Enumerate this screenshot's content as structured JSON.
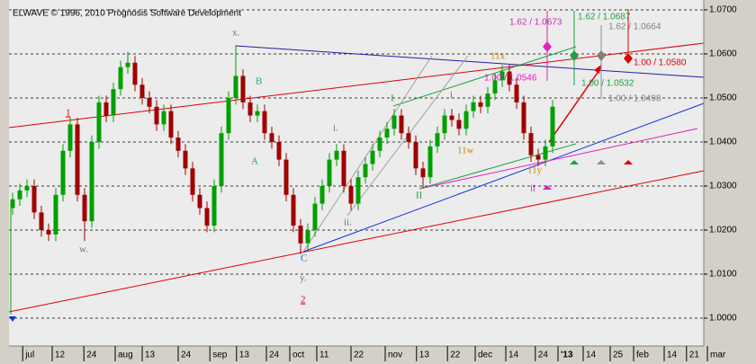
{
  "chart_data": {
    "type": "candlestick",
    "title": "ELWAVE © 1996, 2010 Prognosis Software Development",
    "up_color": "#00a000",
    "down_color": "#a00000",
    "grid": true,
    "ylim": [
      0.99367,
      1.07224
    ],
    "yticks": [
      {
        "value": 1.0,
        "label": "1.0000"
      },
      {
        "value": 1.01,
        "label": "1.0100"
      },
      {
        "value": 1.02,
        "label": "1.0200"
      },
      {
        "value": 1.03,
        "label": "1.0300"
      },
      {
        "value": 1.04,
        "label": "1.0400"
      },
      {
        "value": 1.05,
        "label": "1.0500"
      },
      {
        "value": 1.06,
        "label": "1.0600"
      },
      {
        "value": 1.07,
        "label": "1.0700"
      }
    ],
    "xlim": [
      -0.5,
      96
    ],
    "xticks": [
      {
        "value": 1.4,
        "label": "jul"
      },
      {
        "value": 5.5,
        "label": "12"
      },
      {
        "value": 9.9,
        "label": "24"
      },
      {
        "value": 14.25,
        "label": "aug"
      },
      {
        "value": 18,
        "label": "13"
      },
      {
        "value": 23,
        "label": "24"
      },
      {
        "value": 27.4,
        "label": "sep"
      },
      {
        "value": 31.1,
        "label": "13"
      },
      {
        "value": 35.25,
        "label": "24"
      },
      {
        "value": 38.5,
        "label": "oct"
      },
      {
        "value": 42.25,
        "label": "11"
      },
      {
        "value": 47,
        "label": "22"
      },
      {
        "value": 51.75,
        "label": "nov"
      },
      {
        "value": 56.1,
        "label": "13"
      },
      {
        "value": 60.4,
        "label": "22"
      },
      {
        "value": 64.25,
        "label": "dec"
      },
      {
        "value": 68.5,
        "label": "14"
      },
      {
        "value": 72.6,
        "label": "24"
      },
      {
        "value": 75.75,
        "label": "'13"
      },
      {
        "value": 79.25,
        "label": "14"
      },
      {
        "value": 83,
        "label": "25"
      },
      {
        "value": 86.25,
        "label": "feb"
      },
      {
        "value": 90.5,
        "label": "14"
      },
      {
        "value": 93.6,
        "label": "21"
      },
      {
        "value": 96.5,
        "label": "mar"
      }
    ],
    "open": [
      1.025,
      1.027,
      1.029,
      1.03,
      1.024,
      1.02,
      1.019,
      1.028,
      1.038,
      1.044,
      1.028,
      1.022,
      1.04,
      1.049,
      1.046,
      1.052,
      1.057,
      1.058,
      1.053,
      1.05,
      1.048,
      1.044,
      1.047,
      1.041,
      1.038,
      1.034,
      1.028,
      1.025,
      1.021,
      1.03,
      1.042,
      1.05,
      1.055,
      1.049,
      1.046,
      1.047,
      1.042,
      1.04,
      1.036,
      1.028,
      1.021,
      1.017,
      1.02,
      1.026,
      1.03,
      1.036,
      1.038,
      1.03,
      1.026,
      1.032,
      1.035,
      1.038,
      1.041,
      1.043,
      1.046,
      1.042,
      1.04,
      1.034,
      1.032,
      1.039,
      1.042,
      1.046,
      1.045,
      1.043,
      1.047,
      1.049,
      1.048,
      1.051,
      1.054,
      1.056,
      1.053,
      1.049,
      1.042,
      1.037,
      1.036,
      1.039
    ],
    "high": [
      1.0285,
      1.0305,
      1.0315,
      1.0315,
      1.0255,
      1.0215,
      1.0295,
      1.0395,
      1.0455,
      1.0455,
      1.0295,
      1.0415,
      1.0505,
      1.0505,
      1.0535,
      1.0585,
      1.0605,
      1.0595,
      1.0545,
      1.0515,
      1.0495,
      1.0485,
      1.0485,
      1.0425,
      1.0395,
      1.0355,
      1.0295,
      1.0265,
      1.0315,
      1.0435,
      1.0515,
      1.062,
      1.0565,
      1.0505,
      1.0485,
      1.0485,
      1.0435,
      1.0415,
      1.0375,
      1.0295,
      1.0225,
      1.0215,
      1.0275,
      1.0315,
      1.0375,
      1.0395,
      1.0395,
      1.0315,
      1.0335,
      1.0365,
      1.0395,
      1.0425,
      1.0445,
      1.0475,
      1.0475,
      1.0435,
      1.0415,
      1.0355,
      1.0405,
      1.0435,
      1.0475,
      1.0475,
      1.0465,
      1.0485,
      1.0505,
      1.0505,
      1.0525,
      1.0555,
      1.0575,
      1.0575,
      1.0545,
      1.0505,
      1.0435,
      1.0385,
      1.0405,
      1.0495
    ],
    "low": [
      1.0235,
      1.0255,
      1.0275,
      1.0225,
      1.0185,
      1.0175,
      1.0175,
      1.0265,
      1.0365,
      1.0265,
      1.0175,
      1.0205,
      1.0385,
      1.0445,
      1.0445,
      1.0505,
      1.0555,
      1.0515,
      1.0485,
      1.0465,
      1.0425,
      1.0425,
      1.0395,
      1.0365,
      1.0325,
      1.0265,
      1.0235,
      1.0195,
      1.0195,
      1.0285,
      1.0405,
      1.0485,
      1.0475,
      1.0445,
      1.0445,
      1.0405,
      1.0385,
      1.0345,
      1.0265,
      1.0195,
      1.0145,
      1.0155,
      1.0185,
      1.0245,
      1.0285,
      1.0345,
      1.0285,
      1.0245,
      1.0245,
      1.0305,
      1.0335,
      1.0365,
      1.0395,
      1.0415,
      1.0405,
      1.0385,
      1.0325,
      1.0295,
      1.0305,
      1.0375,
      1.0405,
      1.0435,
      1.0415,
      1.0415,
      1.0455,
      1.0465,
      1.0465,
      1.0495,
      1.0525,
      1.0515,
      1.0475,
      1.0405,
      1.0355,
      1.0345,
      1.0345,
      1.0375
    ],
    "close": [
      1.027,
      1.029,
      1.03,
      1.024,
      1.02,
      1.019,
      1.028,
      1.038,
      1.044,
      1.028,
      1.022,
      1.04,
      1.049,
      1.046,
      1.052,
      1.057,
      1.058,
      1.053,
      1.05,
      1.048,
      1.044,
      1.047,
      1.041,
      1.038,
      1.034,
      1.028,
      1.025,
      1.021,
      1.03,
      1.042,
      1.05,
      1.055,
      1.049,
      1.046,
      1.047,
      1.042,
      1.04,
      1.036,
      1.028,
      1.021,
      1.017,
      1.02,
      1.026,
      1.03,
      1.036,
      1.038,
      1.03,
      1.026,
      1.032,
      1.035,
      1.038,
      1.041,
      1.043,
      1.046,
      1.042,
      1.04,
      1.034,
      1.032,
      1.039,
      1.042,
      1.046,
      1.045,
      1.043,
      1.047,
      1.049,
      1.048,
      1.051,
      1.054,
      1.056,
      1.053,
      1.049,
      1.042,
      1.037,
      1.036,
      1.039,
      1.048
    ],
    "annotations": [
      "1",
      "2",
      "w.",
      "x.",
      "y.",
      "i.",
      "ii.",
      "A",
      "B",
      "C",
      "I",
      "II",
      "i",
      "ii",
      "11x",
      "11w",
      "11y",
      "1.62 / 1.0673",
      "1.62 / 1.0687",
      "1.62 / 1.0664",
      "1.00 / 1.0580",
      "1.00 / 1.0546",
      "1.00 / 1.0532",
      "1.00 / 1.0498"
    ]
  }
}
